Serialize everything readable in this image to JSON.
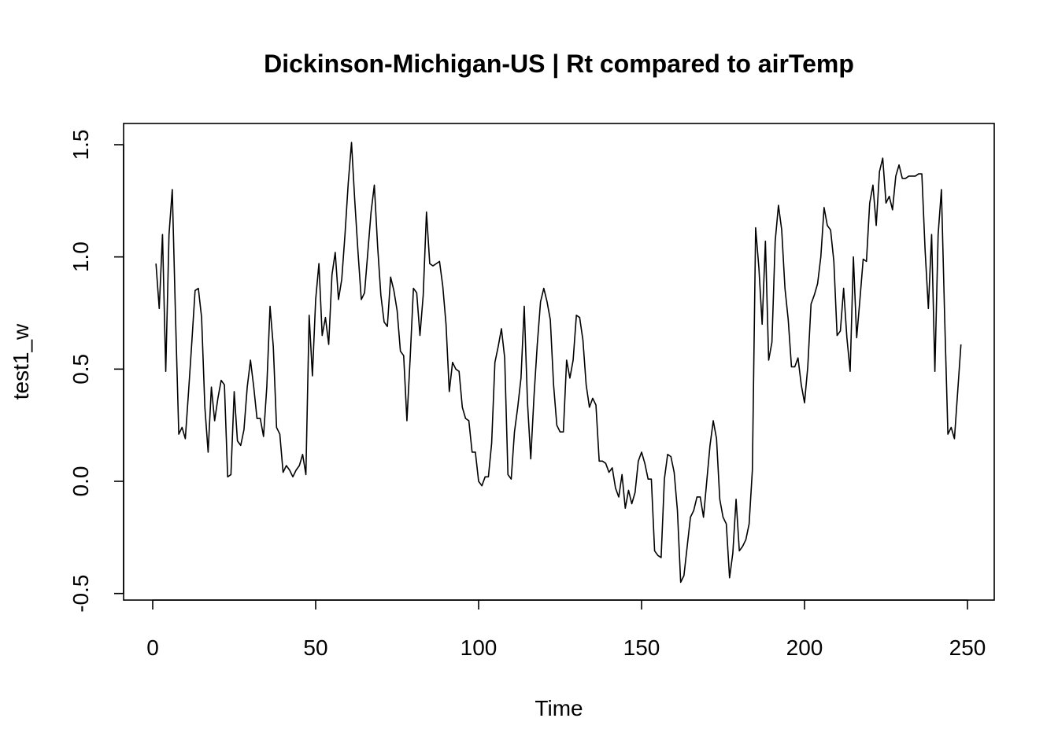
{
  "chart_data": {
    "type": "line",
    "title": "Dickinson-Michigan-US | Rt compared to airTemp",
    "xlabel": "Time",
    "ylabel": "test1_w",
    "xlim": [
      1,
      248
    ],
    "ylim": [
      -0.5,
      1.52
    ],
    "x_ticks": [
      0,
      50,
      100,
      150,
      200,
      250
    ],
    "y_ticks": [
      -0.5,
      0.0,
      0.5,
      1.0,
      1.5
    ],
    "x_tick_labels": [
      "0",
      "50",
      "100",
      "150",
      "200",
      "250"
    ],
    "y_tick_labels": [
      "-0.5",
      "0.0",
      "0.5",
      "1.0",
      "1.5"
    ],
    "grid": false,
    "line_color": "#000000",
    "series": [
      {
        "x_start": 1,
        "values": [
          0.97,
          0.77,
          1.1,
          0.49,
          1.1,
          1.3,
          0.73,
          0.21,
          0.24,
          0.19,
          0.4,
          0.62,
          0.85,
          0.86,
          0.73,
          0.33,
          0.13,
          0.42,
          0.27,
          0.37,
          0.45,
          0.43,
          0.02,
          0.03,
          0.4,
          0.18,
          0.16,
          0.23,
          0.42,
          0.54,
          0.42,
          0.28,
          0.28,
          0.2,
          0.42,
          0.78,
          0.6,
          0.24,
          0.21,
          0.04,
          0.07,
          0.05,
          0.02,
          0.05,
          0.07,
          0.12,
          0.03,
          0.74,
          0.47,
          0.81,
          0.97,
          0.65,
          0.73,
          0.61,
          0.92,
          1.02,
          0.81,
          0.9,
          1.1,
          1.33,
          1.51,
          1.25,
          1.02,
          0.81,
          0.84,
          1.02,
          1.2,
          1.32,
          1.05,
          0.83,
          0.71,
          0.69,
          0.91,
          0.85,
          0.76,
          0.58,
          0.56,
          0.27,
          0.55,
          0.86,
          0.84,
          0.65,
          0.83,
          1.2,
          0.97,
          0.96,
          0.97,
          0.98,
          0.87,
          0.7,
          0.4,
          0.53,
          0.5,
          0.49,
          0.33,
          0.28,
          0.27,
          0.13,
          0.13,
          0.0,
          -0.02,
          0.02,
          0.02,
          0.17,
          0.53,
          0.6,
          0.68,
          0.55,
          0.03,
          0.01,
          0.22,
          0.33,
          0.46,
          0.78,
          0.35,
          0.1,
          0.38,
          0.61,
          0.8,
          0.86,
          0.8,
          0.72,
          0.43,
          0.25,
          0.22,
          0.22,
          0.54,
          0.46,
          0.54,
          0.74,
          0.73,
          0.63,
          0.43,
          0.33,
          0.37,
          0.34,
          0.09,
          0.09,
          0.08,
          0.04,
          0.06,
          -0.03,
          -0.07,
          0.03,
          -0.12,
          -0.04,
          -0.1,
          -0.05,
          0.09,
          0.13,
          0.08,
          0.01,
          0.01,
          -0.31,
          -0.33,
          -0.34,
          0.01,
          0.12,
          0.11,
          0.04,
          -0.13,
          -0.45,
          -0.42,
          -0.29,
          -0.16,
          -0.13,
          -0.07,
          -0.07,
          -0.16,
          0.0,
          0.16,
          0.27,
          0.19,
          -0.08,
          -0.16,
          -0.19,
          -0.43,
          -0.32,
          -0.08,
          -0.31,
          -0.29,
          -0.26,
          -0.19,
          0.05,
          1.13,
          0.95,
          0.7,
          1.07,
          0.54,
          0.62,
          1.07,
          1.23,
          1.12,
          0.86,
          0.72,
          0.51,
          0.51,
          0.55,
          0.43,
          0.35,
          0.51,
          0.79,
          0.83,
          0.88,
          1.0,
          1.22,
          1.14,
          1.12,
          0.98,
          0.65,
          0.67,
          0.86,
          0.64,
          0.49,
          1.0,
          0.64,
          0.81,
          0.99,
          0.98,
          1.24,
          1.32,
          1.14,
          1.38,
          1.44,
          1.24,
          1.27,
          1.21,
          1.36,
          1.41,
          1.35,
          1.35,
          1.36,
          1.36,
          1.36,
          1.37,
          1.37,
          1.03,
          0.77,
          1.1,
          0.49,
          1.1,
          1.3,
          0.73,
          0.21,
          0.24,
          0.19,
          0.4,
          0.61
        ]
      }
    ]
  }
}
